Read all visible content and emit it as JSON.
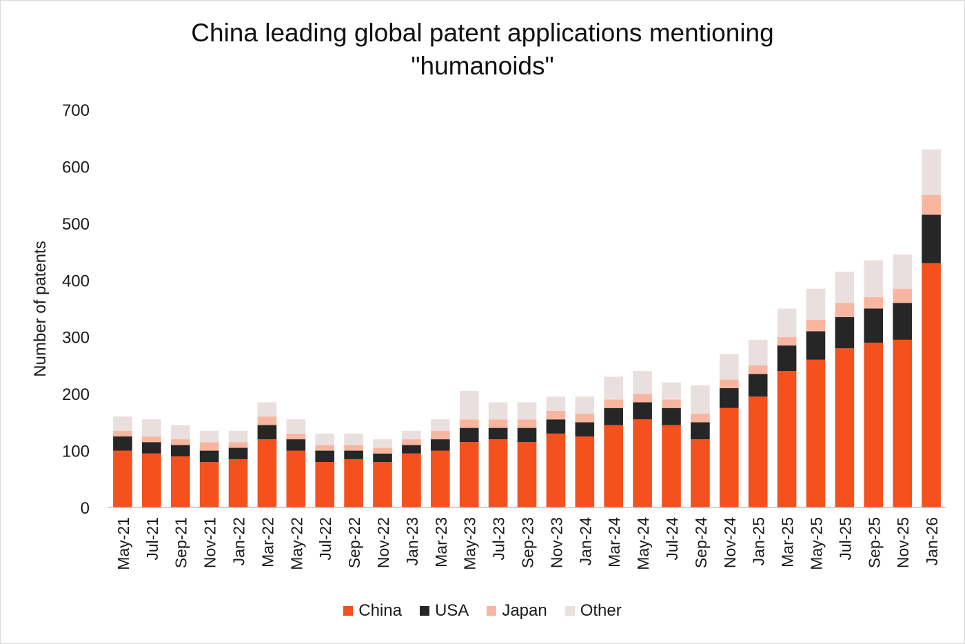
{
  "chart_data": {
    "type": "bar",
    "stacked": true,
    "title": "China leading global patent applications mentioning \"humanoids\"",
    "title_lines": [
      "China leading global patent applications mentioning",
      "\"humanoids\""
    ],
    "xlabel": "",
    "ylabel": "Number of patents",
    "ylim": [
      0,
      700
    ],
    "yticks": [
      0,
      100,
      200,
      300,
      400,
      500,
      600,
      700
    ],
    "grid": false,
    "legend_position": "bottom",
    "categories": [
      "May-21",
      "Jul-21",
      "Sep-21",
      "Nov-21",
      "Jan-22",
      "Mar-22",
      "May-22",
      "Jul-22",
      "Sep-22",
      "Nov-22",
      "Jan-23",
      "Mar-23",
      "May-23",
      "Jul-23",
      "Sep-23",
      "Nov-23",
      "Jan-24",
      "Mar-24",
      "May-24",
      "Jul-24",
      "Sep-24",
      "Nov-24",
      "Jan-25",
      "Mar-25",
      "May-25",
      "Jul-25",
      "Sep-25",
      "Nov-25",
      "Jan-26"
    ],
    "series": [
      {
        "name": "China",
        "color": "#f4511e",
        "values": [
          100,
          95,
          90,
          80,
          85,
          120,
          100,
          80,
          85,
          80,
          95,
          100,
          115,
          120,
          115,
          130,
          125,
          145,
          155,
          145,
          120,
          175,
          195,
          240,
          260,
          280,
          290,
          295,
          430
        ]
      },
      {
        "name": "USA",
        "color": "#262626",
        "values": [
          25,
          20,
          20,
          20,
          20,
          25,
          20,
          20,
          15,
          15,
          15,
          20,
          25,
          20,
          25,
          25,
          25,
          30,
          30,
          30,
          30,
          35,
          40,
          45,
          50,
          55,
          60,
          65,
          85
        ]
      },
      {
        "name": "Japan",
        "color": "#f8b6a0",
        "values": [
          10,
          10,
          10,
          15,
          10,
          15,
          10,
          10,
          10,
          10,
          10,
          15,
          15,
          15,
          15,
          15,
          15,
          15,
          15,
          15,
          15,
          15,
          15,
          15,
          20,
          25,
          20,
          25,
          35
        ]
      },
      {
        "name": "Other",
        "color": "#eadfdf",
        "values": [
          25,
          30,
          25,
          20,
          20,
          25,
          25,
          20,
          20,
          15,
          15,
          20,
          50,
          30,
          30,
          25,
          30,
          40,
          40,
          30,
          50,
          45,
          45,
          50,
          55,
          55,
          65,
          60,
          80
        ]
      }
    ]
  }
}
